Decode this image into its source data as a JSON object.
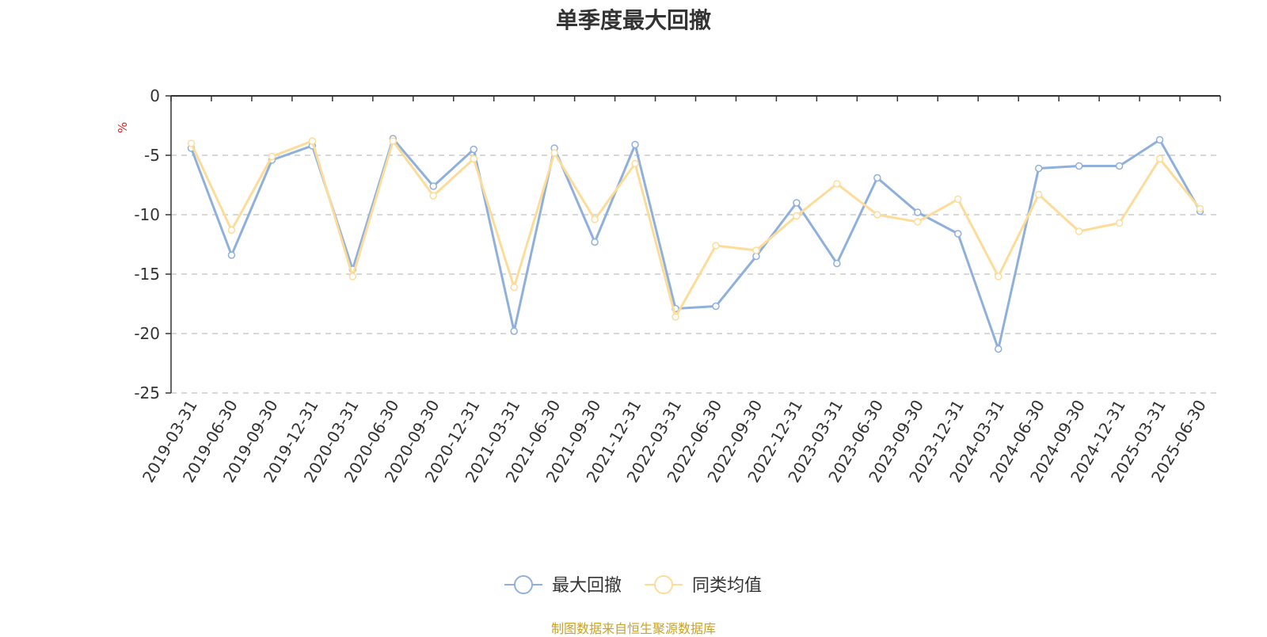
{
  "title": "单季度最大回撤",
  "source_note": "制图数据来自恒生聚源数据库",
  "chart_data": {
    "type": "line",
    "title": "单季度最大回撤",
    "ylabel": "%",
    "ylim": [
      -25,
      0
    ],
    "yticks": [
      0,
      -5,
      -10,
      -15,
      -20,
      -25
    ],
    "grid": true,
    "legend_position": "bottom-center",
    "categories": [
      "2019-03-31",
      "2019-06-30",
      "2019-09-30",
      "2019-12-31",
      "2020-03-31",
      "2020-06-30",
      "2020-09-30",
      "2020-12-31",
      "2021-03-31",
      "2021-06-30",
      "2021-09-30",
      "2021-12-31",
      "2022-03-31",
      "2022-06-30",
      "2022-09-30",
      "2022-12-31",
      "2023-03-31",
      "2023-06-30",
      "2023-09-30",
      "2023-12-31",
      "2024-03-31",
      "2024-06-30",
      "2024-09-30",
      "2024-12-31",
      "2025-03-31",
      "2025-06-30"
    ],
    "series": [
      {
        "name": "最大回撤",
        "color": "#8fb0dc",
        "values": [
          -4.4,
          -13.4,
          -5.4,
          -4.2,
          -14.6,
          -3.6,
          -7.6,
          -4.5,
          -19.8,
          -4.4,
          -12.3,
          -4.1,
          -17.9,
          -17.7,
          -13.5,
          -9.0,
          -14.1,
          -6.9,
          -9.8,
          -11.6,
          -21.3,
          -6.1,
          -5.9,
          -5.9,
          -3.7,
          -9.7
        ]
      },
      {
        "name": "同类均值",
        "color": "#fddc9a",
        "values": [
          -4.0,
          -11.3,
          -5.1,
          -3.8,
          -15.2,
          -3.8,
          -8.4,
          -5.3,
          -16.1,
          -4.8,
          -10.4,
          -5.7,
          -18.6,
          -12.6,
          -13.0,
          -10.1,
          -7.4,
          -10.0,
          -10.6,
          -8.7,
          -15.2,
          -8.3,
          -11.4,
          -10.7,
          -5.3,
          -9.5
        ]
      }
    ]
  }
}
